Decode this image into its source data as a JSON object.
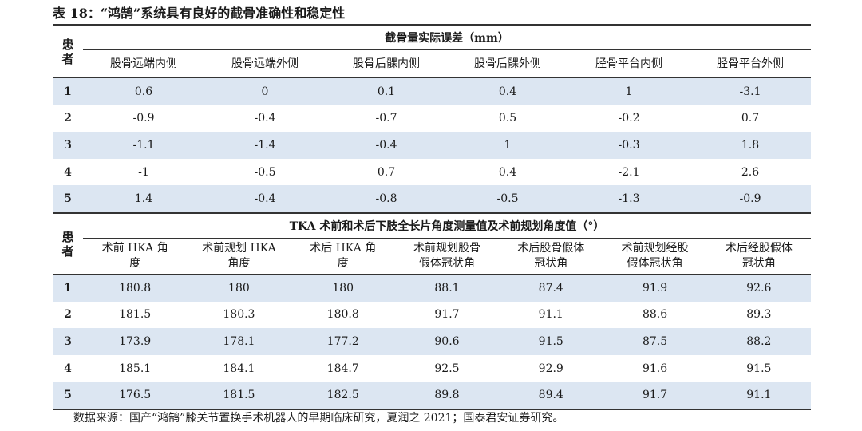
{
  "caption": "表 18：“鸿鹄”系统具有良好的截骨准确性和稳定性",
  "patient_header": "患者",
  "table1": {
    "group_title": "截骨量实际误差（mm）",
    "columns": [
      "股骨远端内侧",
      "股骨远端外侧",
      "股骨后髁内侧",
      "股骨后髁外侧",
      "胫骨平台内侧",
      "胫骨平台外侧"
    ],
    "rows": [
      {
        "id": "1",
        "values": [
          "0.6",
          "0",
          "0.1",
          "0.4",
          "1",
          "-3.1"
        ]
      },
      {
        "id": "2",
        "values": [
          "-0.9",
          "-0.4",
          "-0.7",
          "0.5",
          "-0.2",
          "0.7"
        ]
      },
      {
        "id": "3",
        "values": [
          "-1.1",
          "-1.4",
          "-0.4",
          "1",
          "-0.3",
          "1.8"
        ]
      },
      {
        "id": "4",
        "values": [
          "-1",
          "-0.5",
          "0.7",
          "0.4",
          "-2.1",
          "2.6"
        ]
      },
      {
        "id": "5",
        "values": [
          "1.4",
          "-0.4",
          "-0.8",
          "-0.5",
          "-1.3",
          "-0.9"
        ]
      }
    ]
  },
  "table2": {
    "group_title": "TKA 术前和术后下肢全长片角度测量值及术前规划角度值（°）",
    "columns": [
      [
        "术前 HKA 角",
        "度"
      ],
      [
        "术前规划 HKA",
        "角度"
      ],
      [
        "术后 HKA 角",
        "度"
      ],
      [
        "术前规划股骨",
        "假体冠状角"
      ],
      [
        "术后股骨假体",
        "冠状角"
      ],
      [
        "术前规划经股",
        "假体冠状角"
      ],
      [
        "术后经股假体",
        "冠状角"
      ]
    ],
    "rows": [
      {
        "id": "1",
        "values": [
          "180.8",
          "180",
          "180",
          "88.1",
          "87.4",
          "91.9",
          "92.6"
        ]
      },
      {
        "id": "2",
        "values": [
          "181.5",
          "180.3",
          "180.8",
          "91.7",
          "91.1",
          "88.6",
          "89.3"
        ]
      },
      {
        "id": "3",
        "values": [
          "173.9",
          "178.1",
          "177.2",
          "90.6",
          "91.5",
          "87.5",
          "88.2"
        ]
      },
      {
        "id": "4",
        "values": [
          "185.1",
          "184.1",
          "184.7",
          "92.5",
          "92.9",
          "91.6",
          "91.5"
        ]
      },
      {
        "id": "5",
        "values": [
          "176.5",
          "181.5",
          "182.5",
          "89.8",
          "89.4",
          "91.7",
          "91.1"
        ]
      }
    ]
  },
  "source": "数据来源：国产“鸿鹄”膝关节置换手术机器人的早期临床研究，夏润之 2021；国泰君安证券研究。",
  "colors": {
    "row_shade": "#dce6f2",
    "rule": "#333333"
  }
}
